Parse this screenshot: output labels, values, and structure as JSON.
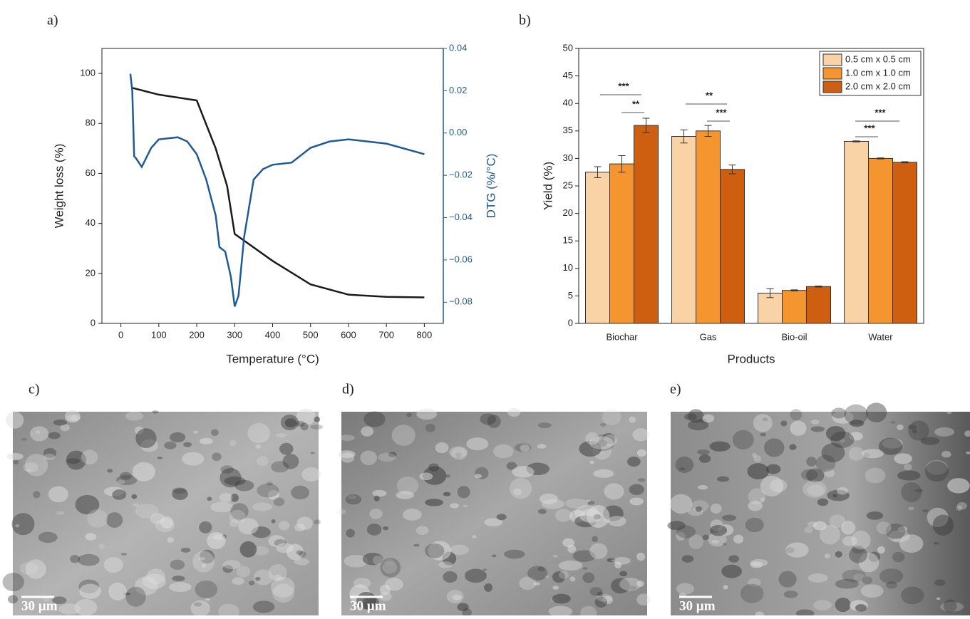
{
  "chart_data": [
    {
      "type": "line",
      "panel_label": "a)",
      "x_label": "Temperature (°C)",
      "y_label": "Weight loss (%)",
      "y2_label": "DTG (%/°C)",
      "xlim": [
        -50,
        850
      ],
      "xticks": [
        0,
        100,
        200,
        300,
        400,
        500,
        600,
        700,
        800
      ],
      "ylim": [
        0,
        110
      ],
      "yticks": [
        0,
        20,
        40,
        60,
        80,
        100
      ],
      "y2lim": [
        -0.09,
        0.04
      ],
      "y2ticks": [
        {
          "value": -0.08,
          "label": "−0.08"
        },
        {
          "value": -0.06,
          "label": "−0.06"
        },
        {
          "value": -0.04,
          "label": "−0.04"
        },
        {
          "value": -0.02,
          "label": "−0.02"
        },
        {
          "value": 0,
          "label": "0.00"
        },
        0.02,
        0.04
      ],
      "series": [
        {
          "color": "#1a1a1a",
          "x": [
            28,
            100,
            200,
            250,
            280,
            300,
            400,
            500,
            600,
            700,
            800
          ],
          "values": [
            94.3,
            91.5,
            89.2,
            70,
            55,
            35.8,
            25,
            15.6,
            11.5,
            10.6,
            10.4
          ]
        },
        {
          "color": "#1f5a96",
          "axis": "y2",
          "x": [
            25,
            30,
            35,
            40,
            55,
            80,
            100,
            150,
            175,
            200,
            225,
            250,
            260,
            275,
            290,
            300,
            310,
            325,
            350,
            375,
            400,
            450,
            500,
            550,
            600,
            700,
            800
          ],
          "values": [
            0.028,
            0.02,
            -0.011,
            -0.012,
            -0.016,
            -0.007,
            -0.003,
            -0.002,
            -0.004,
            -0.01,
            -0.022,
            -0.039,
            -0.054,
            -0.056,
            -0.068,
            -0.082,
            -0.077,
            -0.049,
            -0.022,
            -0.017,
            -0.015,
            -0.014,
            -0.007,
            -0.004,
            -0.003,
            -0.005,
            -0.01
          ]
        }
      ]
    },
    {
      "type": "bar",
      "panel_label": "b)",
      "x_label": "Products",
      "y_label": "Yield (%)",
      "categories": [
        "Biochar",
        "Gas",
        "Bio-oil",
        "Water"
      ],
      "ylim": [
        0,
        50
      ],
      "yticks": [
        0,
        5,
        10,
        15,
        20,
        25,
        30,
        35,
        40,
        45,
        50
      ],
      "legend": "upper right",
      "series": [
        {
          "name": "0.5 cm x 0.5 cm",
          "color": "#f9d2a6",
          "values": [
            27.5,
            34,
            5.5,
            33.1
          ],
          "errors": [
            1,
            1.2,
            0.8,
            0.1
          ]
        },
        {
          "name": "1.0 cm x 1.0 cm",
          "color": "#f4952f",
          "values": [
            29,
            35,
            6,
            30
          ],
          "errors": [
            1.5,
            1,
            0.1,
            0.1
          ]
        },
        {
          "name": "2.0 cm x 2.0 cm",
          "color": "#cf5f10",
          "values": [
            36,
            28,
            6.7,
            29.3
          ],
          "errors": [
            1.3,
            0.8,
            0.1,
            0.1
          ]
        }
      ],
      "annotations": [
        "***",
        "**",
        "**",
        "***",
        "***",
        "***"
      ]
    }
  ],
  "images": [
    {
      "label": "c)",
      "scale_bar": "30 µm"
    },
    {
      "label": "d)",
      "scale_bar": "30 µm"
    },
    {
      "label": "e)",
      "scale_bar": "30 µm"
    }
  ]
}
